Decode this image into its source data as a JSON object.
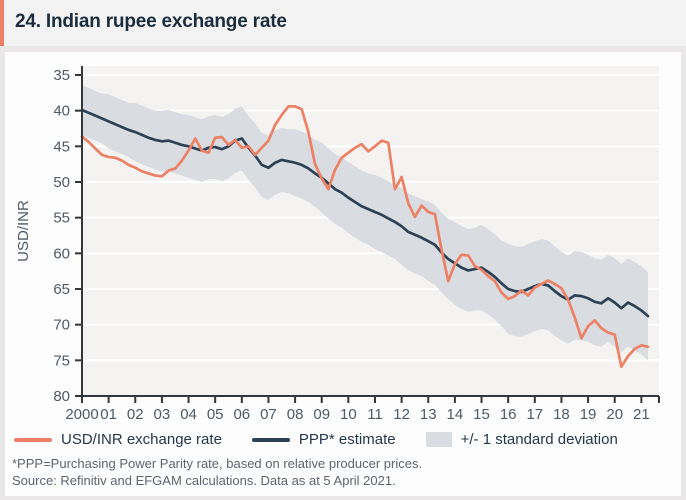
{
  "title": "24. Indian rupee exchange rate",
  "accent_color": "#ED8165",
  "legend": {
    "items": [
      {
        "label": "USD/INR exchange rate",
        "swatch": "line",
        "color": "#ED8165"
      },
      {
        "label": "PPP* estimate",
        "swatch": "line",
        "color": "#2D4156"
      },
      {
        "label": "+/- 1 standard deviation",
        "swatch": "box",
        "color": "#D9DDE2"
      }
    ]
  },
  "footnotes": [
    "*PPP=Purchasing Power Parity rate, based on relative producer prices.",
    "Source: Refinitiv and EFGAM calculations. Data as at 5 April 2021."
  ],
  "chart_data": {
    "type": "line",
    "title": "24. Indian rupee exchange rate",
    "xlabel": "",
    "ylabel": "USD/INR",
    "y_axis_inverted": true,
    "y_ticks": [
      35,
      40,
      45,
      50,
      55,
      60,
      65,
      70,
      75,
      80
    ],
    "y_gridlines": [
      35,
      40,
      45,
      50,
      55,
      60,
      65,
      70,
      75
    ],
    "ylim": [
      35,
      80
    ],
    "xlim": [
      2000,
      2021.7
    ],
    "x_tick_years": [
      2000,
      2001,
      2002,
      2003,
      2004,
      2005,
      2006,
      2007,
      2008,
      2009,
      2010,
      2011,
      2012,
      2013,
      2014,
      2015,
      2016,
      2017,
      2018,
      2019,
      2020,
      2021
    ],
    "x_tick_labels": [
      "2000",
      "01",
      "02",
      "03",
      "04",
      "05",
      "06",
      "07",
      "08",
      "09",
      "10",
      "11",
      "12",
      "13",
      "14",
      "15",
      "16",
      "17",
      "18",
      "19",
      "20",
      "21"
    ],
    "x_start": 2000,
    "x_step": 0.25,
    "x_end": 2021.25,
    "legend_position": "bottom",
    "grid": true,
    "colors": {
      "plot_bg": "#f4f3f2",
      "grid": "#ffffff",
      "axis": "#32373c",
      "tick_label": "#4e5a66"
    },
    "band": {
      "name": "+/- 1 standard deviation",
      "color": "#D9DDE2",
      "upper": [
        36.4,
        36.8,
        37.2,
        37.6,
        37.7,
        38.1,
        38.5,
        38.9,
        38.9,
        39.3,
        39.7,
        40.0,
        40.0,
        39.9,
        40.2,
        40.5,
        40.6,
        40.9,
        41.2,
        40.8,
        40.6,
        40.9,
        40.5,
        39.7,
        39.4,
        40.7,
        41.8,
        43.1,
        43.5,
        42.8,
        42.4,
        42.6,
        42.6,
        42.9,
        43.4,
        44.1,
        44.5,
        45.3,
        46.1,
        46.6,
        47.2,
        47.8,
        48.4,
        48.8,
        49.0,
        49.4,
        49.9,
        50.4,
        50.8,
        51.6,
        52.0,
        52.4,
        52.7,
        53.2,
        54.3,
        55.2,
        55.6,
        56.2,
        56.6,
        56.4,
        56.0,
        56.6,
        57.3,
        58.2,
        58.7,
        59.0,
        59.1,
        58.7,
        58.3,
        58.0,
        58.2,
        59.0,
        59.8,
        60.3,
        59.7,
        59.8,
        60.2,
        60.7,
        60.9,
        60.2,
        60.7,
        61.5,
        60.7,
        61.2,
        61.8,
        62.6
      ],
      "lower": [
        43.4,
        43.8,
        44.2,
        44.6,
        45.3,
        45.7,
        46.1,
        46.5,
        47.1,
        47.5,
        47.9,
        48.2,
        48.6,
        48.5,
        48.8,
        49.1,
        49.4,
        49.7,
        50.0,
        49.6,
        49.6,
        49.9,
        49.5,
        48.7,
        48.4,
        49.7,
        50.8,
        52.1,
        52.5,
        51.8,
        51.4,
        51.6,
        52.0,
        52.3,
        52.8,
        53.5,
        54.3,
        55.1,
        55.9,
        56.4,
        57.2,
        57.8,
        58.4,
        58.8,
        59.4,
        59.8,
        60.3,
        60.8,
        61.6,
        62.4,
        62.8,
        63.2,
        63.9,
        64.4,
        65.5,
        66.4,
        67.2,
        67.8,
        68.2,
        68.0,
        68.0,
        68.6,
        69.3,
        70.2,
        71.3,
        71.6,
        71.7,
        71.3,
        70.9,
        70.6,
        70.8,
        71.6,
        72.2,
        72.7,
        72.1,
        72.2,
        72.4,
        72.9,
        73.1,
        72.4,
        73.1,
        73.9,
        73.1,
        73.6,
        74.2,
        75.0
      ]
    },
    "series": [
      {
        "name": "USD/INR exchange rate",
        "color": "#ED8165",
        "values": [
          43.6,
          44.4,
          45.3,
          46.2,
          46.5,
          46.6,
          47.0,
          47.6,
          48.0,
          48.5,
          48.8,
          49.1,
          49.2,
          48.4,
          48.1,
          47.0,
          45.6,
          43.9,
          45.6,
          45.9,
          43.8,
          43.7,
          44.8,
          44.1,
          45.2,
          45.0,
          46.2,
          45.2,
          44.2,
          42.0,
          40.6,
          39.4,
          39.4,
          39.8,
          43.0,
          47.5,
          49.5,
          51.0,
          48.3,
          46.6,
          45.9,
          45.2,
          44.7,
          45.7,
          45.0,
          44.2,
          44.5,
          51.0,
          49.3,
          53.0,
          54.9,
          53.3,
          54.2,
          54.5,
          59.5,
          63.9,
          61.5,
          60.2,
          60.3,
          61.8,
          62.3,
          63.2,
          63.9,
          65.5,
          66.4,
          66.0,
          65.2,
          65.9,
          64.8,
          64.3,
          63.8,
          64.3,
          64.9,
          66.5,
          69.0,
          71.9,
          70.2,
          69.4,
          70.5,
          71.1,
          71.4,
          75.9,
          74.4,
          73.4,
          72.9,
          73.1
        ]
      },
      {
        "name": "PPP* estimate",
        "color": "#2D4156",
        "values": [
          39.9,
          40.3,
          40.7,
          41.1,
          41.5,
          41.9,
          42.3,
          42.7,
          43.0,
          43.4,
          43.8,
          44.1,
          44.3,
          44.2,
          44.5,
          44.8,
          45.0,
          45.3,
          45.6,
          45.2,
          45.1,
          45.4,
          45.0,
          44.2,
          43.9,
          45.2,
          46.3,
          47.6,
          48.0,
          47.3,
          46.9,
          47.1,
          47.3,
          47.6,
          48.1,
          48.8,
          49.4,
          50.2,
          51.0,
          51.5,
          52.2,
          52.8,
          53.4,
          53.8,
          54.2,
          54.6,
          55.1,
          55.6,
          56.2,
          57.0,
          57.4,
          57.8,
          58.3,
          58.8,
          59.9,
          60.8,
          61.4,
          62.0,
          62.4,
          62.2,
          62.0,
          62.6,
          63.3,
          64.2,
          65.0,
          65.3,
          65.4,
          65.0,
          64.6,
          64.3,
          64.5,
          65.3,
          66.0,
          66.5,
          65.9,
          66.0,
          66.3,
          66.8,
          67.0,
          66.3,
          66.9,
          67.7,
          66.9,
          67.4,
          68.0,
          68.8
        ]
      }
    ]
  }
}
